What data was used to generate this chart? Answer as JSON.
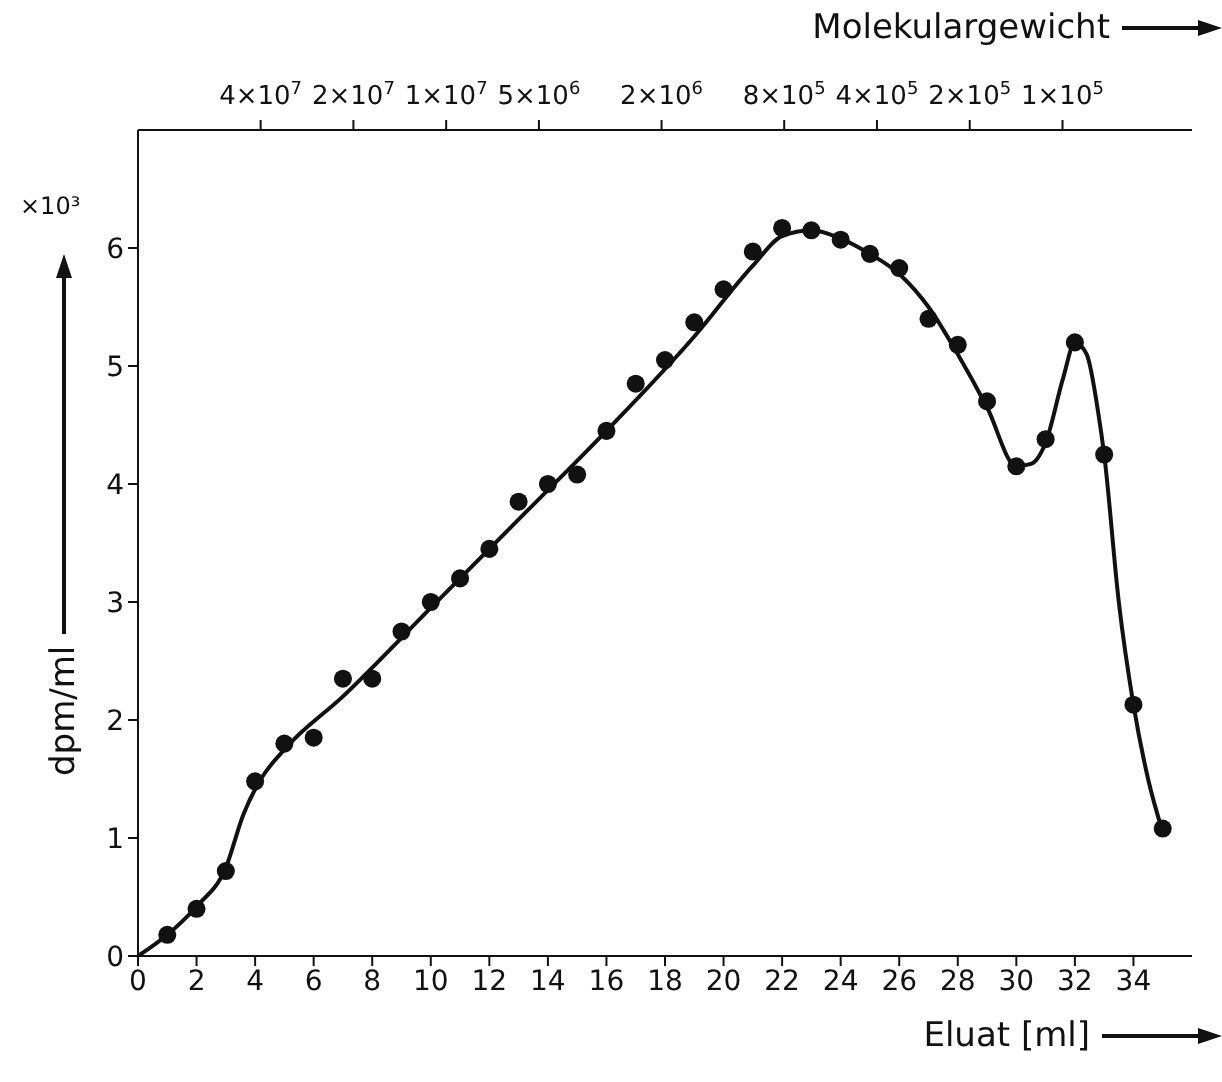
{
  "chart_data": {
    "type": "scatter",
    "xlabel": "Eluat [ml]",
    "ylabel": "dpm/ml",
    "x2label": "Molekulargewicht",
    "annotations": [
      "×10³"
    ],
    "xlim": [
      0,
      36
    ],
    "xticks": [
      0,
      2,
      4,
      6,
      8,
      10,
      12,
      14,
      16,
      18,
      20,
      22,
      24,
      26,
      28,
      30,
      32,
      34
    ],
    "x2lim": [
      100000000,
      38000
    ],
    "log": "x2",
    "x2ticks": [
      {
        "value": 40000000,
        "label": "4×10$^{7}$"
      },
      {
        "value": 20000000,
        "label": "2×10$^{7}$"
      },
      {
        "value": 10000000,
        "label": "1×10$^{7}$"
      },
      {
        "value": 5000000,
        "label": "5×10$^{6}$"
      },
      {
        "value": 2000000,
        "label": "2×10$^{6}$"
      },
      {
        "value": 800000,
        "label": "8×10$^{5}$"
      },
      {
        "value": 400000,
        "label": "4×10$^{5}$"
      },
      {
        "value": 200000,
        "label": "2×10$^{5}$"
      },
      {
        "value": 100000,
        "label": "1×10$^{5}$"
      }
    ],
    "ylim": [
      0,
      7
    ],
    "yticks": [
      0,
      1,
      2,
      3,
      4,
      5,
      6
    ],
    "marker": "circle",
    "series": [
      {
        "color": "#111111",
        "x": [
          1,
          2,
          3,
          4,
          5,
          6,
          7,
          8,
          9,
          10,
          11,
          12,
          13,
          14,
          15,
          16,
          17,
          18,
          19,
          20,
          21,
          22,
          23,
          24,
          25,
          26,
          27,
          28,
          29,
          30,
          31,
          32,
          33,
          34,
          35
        ],
        "values": [
          0.18,
          0.4,
          0.72,
          1.48,
          1.8,
          1.85,
          2.35,
          2.35,
          2.75,
          3.0,
          3.2,
          3.45,
          3.85,
          4.0,
          4.08,
          4.45,
          4.85,
          5.05,
          5.37,
          5.65,
          5.97,
          6.17,
          6.15,
          6.07,
          5.95,
          5.83,
          5.4,
          5.18,
          4.7,
          4.15,
          4.38,
          5.2,
          4.25,
          2.13,
          1.08
        ]
      },
      {
        "type": "line",
        "color": "#111111",
        "marker": "none",
        "x": [
          0,
          1,
          2,
          3,
          3.6,
          4.2,
          5,
          7,
          10,
          13,
          16,
          19,
          21,
          22,
          23,
          24,
          25,
          26,
          27,
          28,
          29,
          30,
          30.5,
          31,
          31.6,
          32,
          32.4,
          32.8,
          33,
          33.5,
          34,
          34.5,
          35
        ],
        "values": [
          0,
          0.18,
          0.42,
          0.75,
          1.2,
          1.5,
          1.75,
          2.2,
          2.95,
          3.7,
          4.45,
          5.25,
          5.85,
          6.1,
          6.15,
          6.08,
          5.95,
          5.78,
          5.5,
          5.1,
          4.65,
          4.15,
          4.17,
          4.35,
          4.9,
          5.2,
          5.1,
          4.6,
          4.25,
          3.0,
          2.13,
          1.5,
          1.05
        ]
      }
    ]
  }
}
